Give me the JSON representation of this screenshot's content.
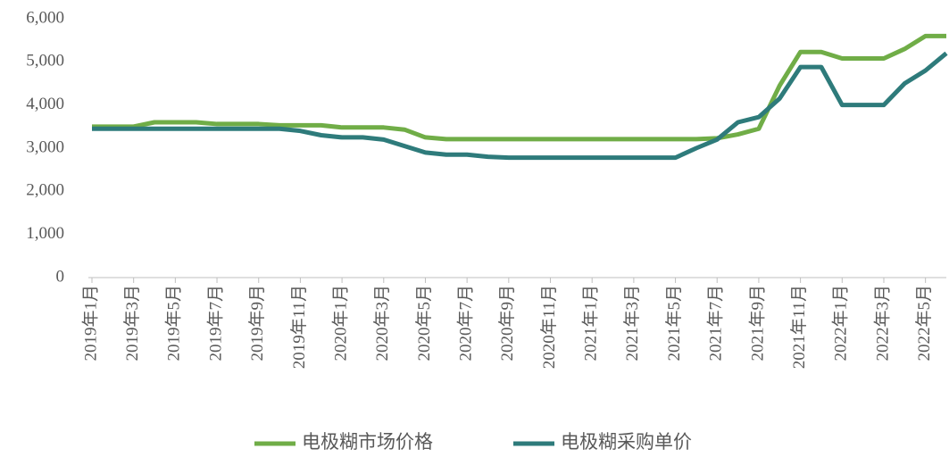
{
  "chart_data": {
    "type": "line",
    "categories": [
      "2019年1月",
      null,
      "2019年3月",
      null,
      "2019年5月",
      null,
      "2019年7月",
      null,
      "2019年9月",
      null,
      "2019年11月",
      null,
      "2020年1月",
      null,
      "2020年3月",
      null,
      "2020年5月",
      null,
      "2020年7月",
      null,
      "2020年9月",
      null,
      "2020年11月",
      null,
      "2021年1月",
      null,
      "2021年3月",
      null,
      "2021年5月",
      null,
      "2021年7月",
      null,
      "2021年9月",
      null,
      "2021年11月",
      null,
      "2022年1月",
      null,
      "2022年3月",
      null,
      "2022年5月",
      null
    ],
    "series": [
      {
        "name": "电极糊市场价格",
        "color": "#70ad47",
        "values": [
          3500,
          3500,
          3500,
          3600,
          3600,
          3600,
          3560,
          3560,
          3560,
          3530,
          3530,
          3530,
          3480,
          3480,
          3480,
          3430,
          3250,
          3210,
          3210,
          3210,
          3210,
          3210,
          3210,
          3210,
          3210,
          3210,
          3210,
          3210,
          3210,
          3210,
          3230,
          3320,
          3450,
          4450,
          5230,
          5230,
          5080,
          5080,
          5080,
          5300,
          5600,
          5600
        ]
      },
      {
        "name": "电极糊采购单价",
        "color": "#2e7b7b",
        "values": [
          3450,
          3450,
          3450,
          3450,
          3450,
          3450,
          3450,
          3450,
          3450,
          3450,
          3400,
          3300,
          3250,
          3250,
          3200,
          3050,
          2900,
          2850,
          2850,
          2800,
          2780,
          2780,
          2780,
          2780,
          2780,
          2780,
          2780,
          2780,
          2780,
          3000,
          3200,
          3600,
          3720,
          4150,
          4880,
          4880,
          4000,
          4000,
          4000,
          4500,
          4800,
          5200
        ]
      }
    ],
    "ylim": [
      0,
      6000
    ],
    "yticks": [
      0,
      {
        "value": 1000,
        "label": "1,000"
      },
      {
        "value": 2000,
        "label": "2,000"
      },
      {
        "value": 3000,
        "label": "3,000"
      },
      {
        "value": 4000,
        "label": "4,000"
      },
      {
        "value": 5000,
        "label": "5,000"
      },
      {
        "value": 6000,
        "label": "6,000"
      }
    ],
    "grid": false,
    "legend": "bottom"
  }
}
